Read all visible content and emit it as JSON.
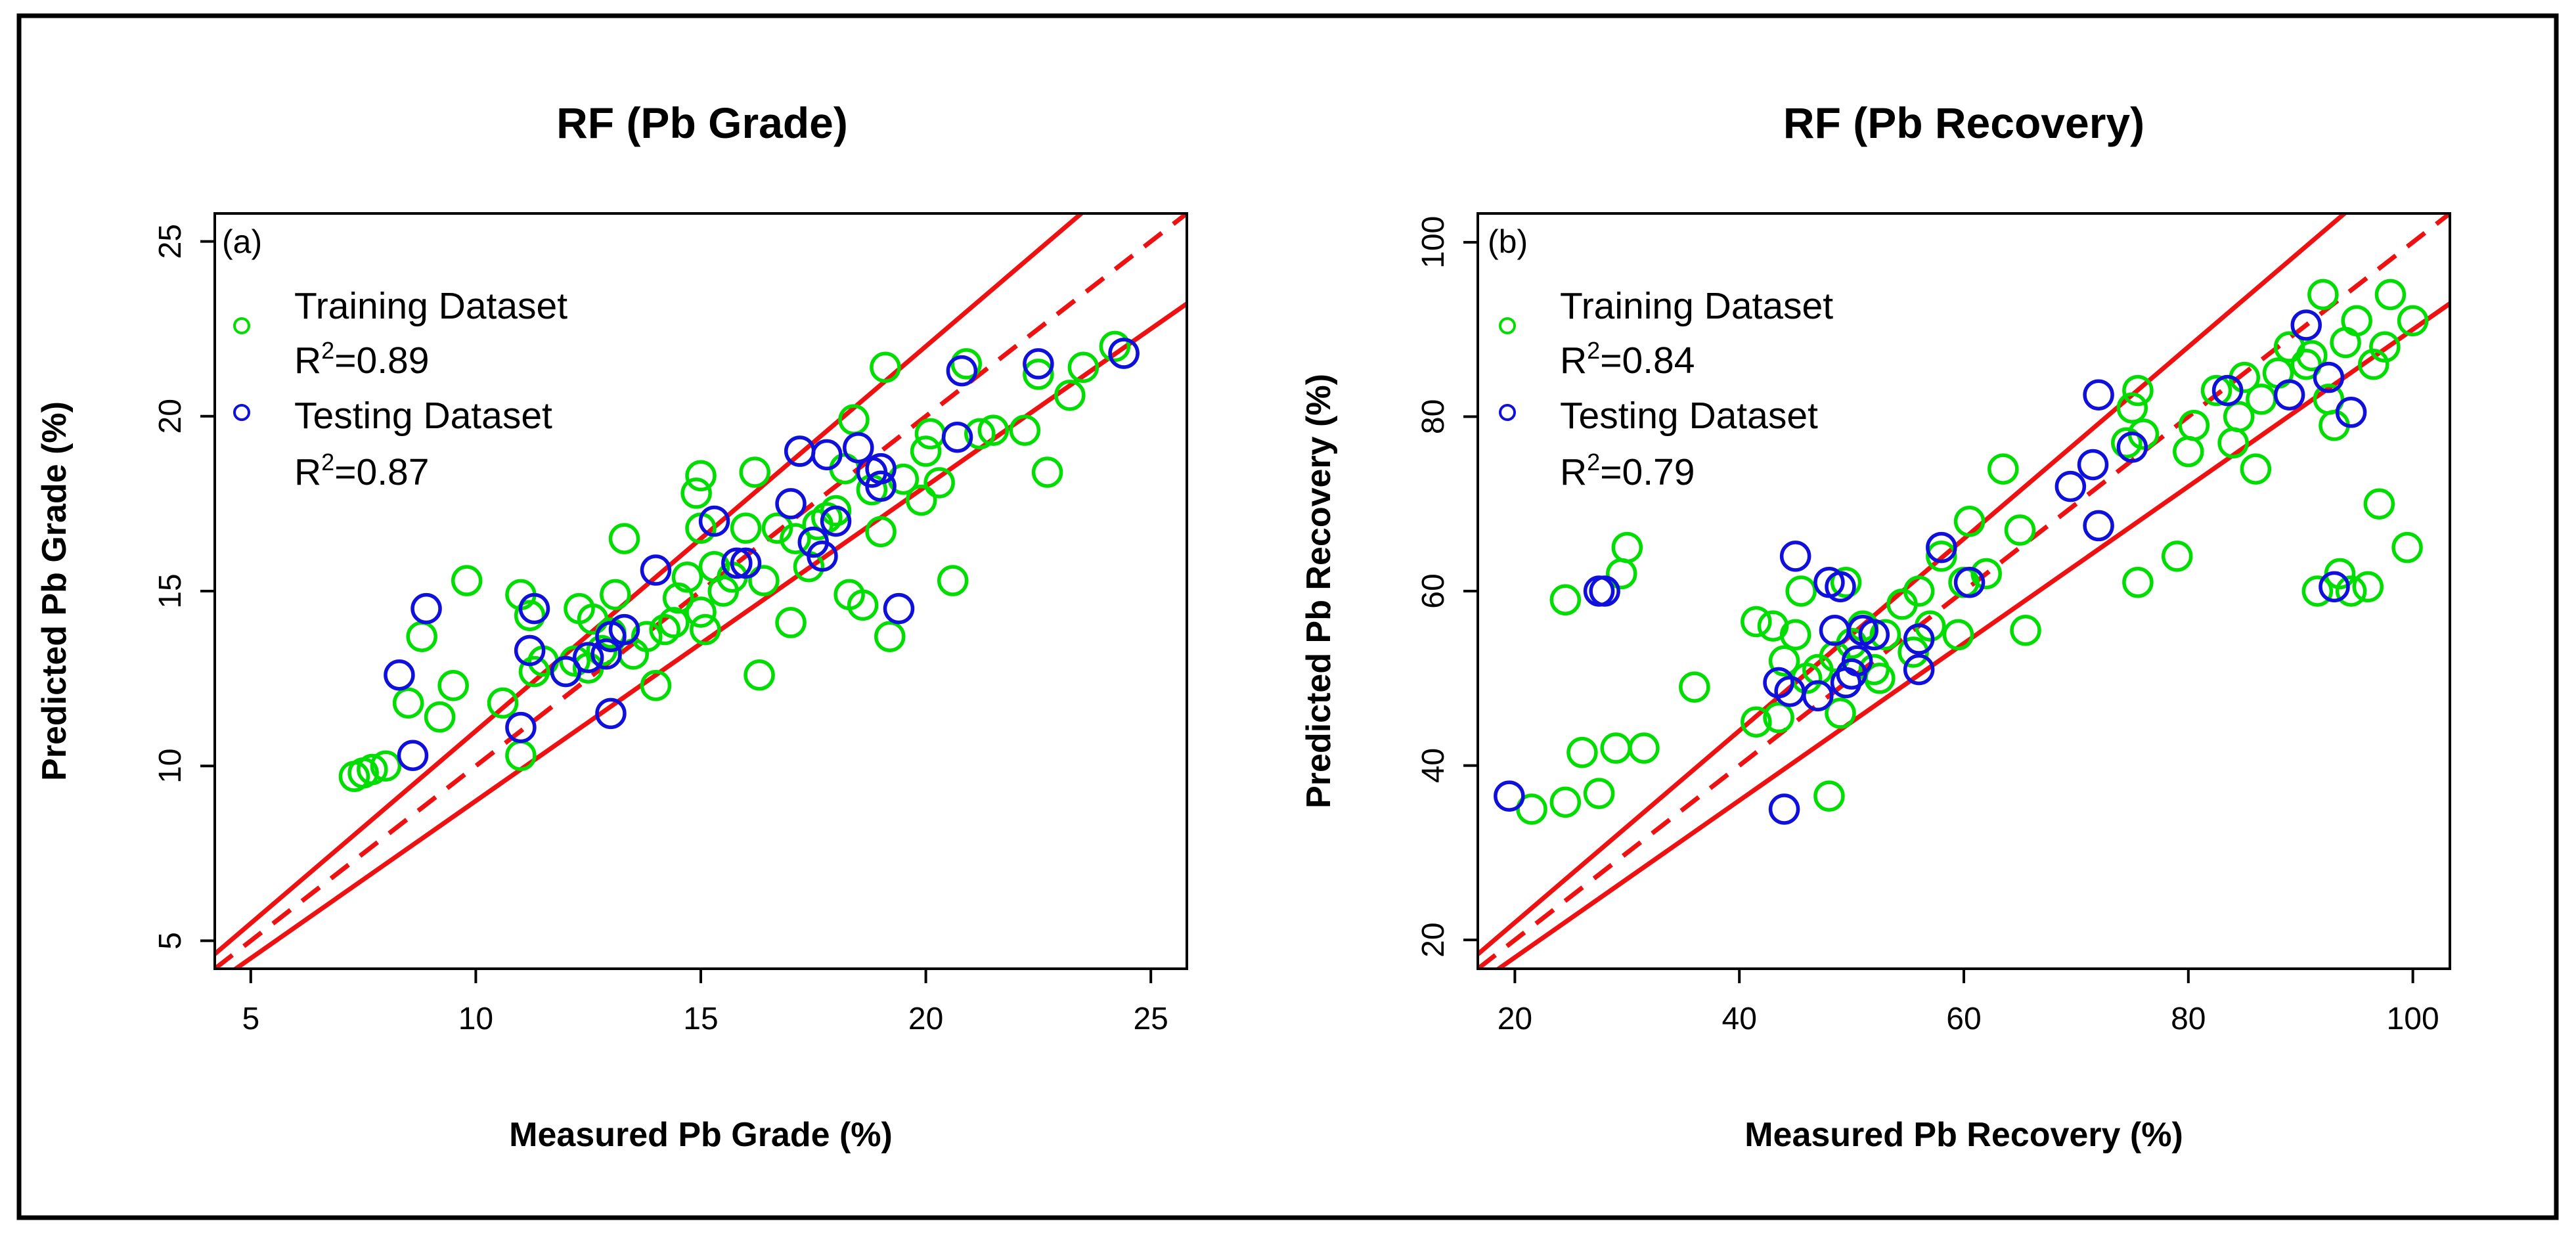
{
  "chart_data": [
    {
      "type": "scatter",
      "panel_label": "(a)",
      "title": "RF (Pb Grade)",
      "xlabel": "Measured Pb Grade (%)",
      "ylabel": "Predicted Pb Grade (%)",
      "xlim": [
        4.2,
        25.8
      ],
      "ylim": [
        4.2,
        25.8
      ],
      "xticks": [
        5,
        10,
        15,
        20,
        25
      ],
      "yticks": [
        5,
        10,
        15,
        20,
        25
      ],
      "legend": {
        "position": "top-left",
        "entries": [
          {
            "label": "Training Dataset",
            "stat": "R²=0.89",
            "color": "#00dd00"
          },
          {
            "label": "Testing Dataset",
            "stat": "R²=0.87",
            "color": "#1010dd"
          }
        ]
      },
      "reference_lines": [
        {
          "kind": "dashed",
          "slope": 1.0,
          "color": "#ee1111"
        },
        {
          "kind": "solid",
          "slope": 1.1,
          "color": "#ee1111"
        },
        {
          "kind": "solid",
          "slope": 0.9,
          "color": "#ee1111"
        }
      ],
      "series": [
        {
          "name": "Training Dataset",
          "color": "#00dd00",
          "points": [
            [
              7.3,
              9.7
            ],
            [
              7.5,
              9.8
            ],
            [
              7.7,
              9.9
            ],
            [
              8.0,
              10.0
            ],
            [
              8.5,
              11.8
            ],
            [
              8.8,
              13.7
            ],
            [
              9.2,
              11.4
            ],
            [
              9.5,
              12.3
            ],
            [
              9.8,
              15.3
            ],
            [
              10.6,
              11.8
            ],
            [
              11.0,
              10.3
            ],
            [
              11.0,
              14.9
            ],
            [
              11.3,
              12.7
            ],
            [
              11.5,
              13.0
            ],
            [
              11.2,
              14.3
            ],
            [
              12.0,
              12.7
            ],
            [
              12.2,
              13.0
            ],
            [
              12.3,
              14.5
            ],
            [
              12.5,
              12.8
            ],
            [
              12.6,
              14.2
            ],
            [
              12.8,
              13.3
            ],
            [
              13.0,
              13.8
            ],
            [
              13.1,
              14.9
            ],
            [
              13.3,
              16.5
            ],
            [
              13.5,
              13.2
            ],
            [
              13.8,
              13.7
            ],
            [
              14.0,
              12.3
            ],
            [
              14.2,
              13.9
            ],
            [
              14.4,
              14.1
            ],
            [
              14.5,
              14.8
            ],
            [
              14.7,
              15.4
            ],
            [
              14.9,
              17.8
            ],
            [
              15.0,
              18.3
            ],
            [
              15.0,
              16.8
            ],
            [
              15.0,
              14.4
            ],
            [
              15.1,
              13.9
            ],
            [
              15.3,
              15.7
            ],
            [
              15.5,
              15.0
            ],
            [
              15.7,
              15.4
            ],
            [
              16.0,
              16.8
            ],
            [
              16.2,
              18.4
            ],
            [
              16.3,
              12.6
            ],
            [
              16.4,
              15.3
            ],
            [
              16.7,
              16.8
            ],
            [
              17.0,
              14.1
            ],
            [
              17.1,
              16.5
            ],
            [
              17.2,
              19.0
            ],
            [
              17.4,
              15.7
            ],
            [
              17.6,
              16.9
            ],
            [
              17.8,
              17.1
            ],
            [
              18.0,
              17.3
            ],
            [
              18.2,
              18.5
            ],
            [
              18.3,
              14.9
            ],
            [
              18.4,
              19.9
            ],
            [
              18.6,
              14.6
            ],
            [
              18.8,
              17.9
            ],
            [
              19.0,
              16.7
            ],
            [
              19.1,
              21.4
            ],
            [
              19.2,
              13.7
            ],
            [
              19.5,
              18.2
            ],
            [
              19.9,
              17.6
            ],
            [
              20.0,
              19.0
            ],
            [
              20.1,
              19.5
            ],
            [
              20.3,
              18.1
            ],
            [
              20.6,
              15.3
            ],
            [
              20.9,
              21.5
            ],
            [
              21.2,
              19.5
            ],
            [
              21.5,
              19.6
            ],
            [
              22.2,
              19.6
            ],
            [
              22.5,
              21.2
            ],
            [
              22.7,
              18.4
            ],
            [
              23.2,
              20.6
            ],
            [
              23.5,
              21.4
            ],
            [
              24.2,
              22.0
            ],
            [
              24.4,
              21.8
            ]
          ]
        },
        {
          "name": "Testing Dataset",
          "color": "#1010dd",
          "points": [
            [
              8.3,
              12.6
            ],
            [
              8.6,
              10.3
            ],
            [
              8.9,
              14.5
            ],
            [
              11.0,
              11.1
            ],
            [
              11.2,
              13.3
            ],
            [
              11.3,
              14.5
            ],
            [
              12.0,
              12.7
            ],
            [
              12.5,
              13.1
            ],
            [
              12.9,
              13.2
            ],
            [
              13.0,
              11.5
            ],
            [
              13.0,
              13.7
            ],
            [
              13.3,
              13.9
            ],
            [
              14.0,
              15.6
            ],
            [
              15.3,
              17.0
            ],
            [
              15.8,
              15.8
            ],
            [
              16.0,
              15.8
            ],
            [
              17.0,
              17.5
            ],
            [
              17.2,
              19.0
            ],
            [
              17.5,
              16.4
            ],
            [
              17.7,
              16.0
            ],
            [
              17.8,
              18.9
            ],
            [
              18.0,
              17.0
            ],
            [
              18.5,
              19.1
            ],
            [
              18.8,
              18.4
            ],
            [
              19.0,
              18.5
            ],
            [
              19.0,
              18.0
            ],
            [
              19.4,
              14.5
            ],
            [
              20.7,
              19.4
            ],
            [
              20.8,
              21.3
            ],
            [
              22.5,
              21.5
            ],
            [
              24.4,
              21.8
            ]
          ]
        }
      ]
    },
    {
      "type": "scatter",
      "panel_label": "(b)",
      "title": "RF (Pb Recovery)",
      "xlabel": "Measured Pb Recovery (%)",
      "ylabel": "Predicted Pb Recovery (%)",
      "xlim": [
        16.7,
        103.3
      ],
      "ylim": [
        16.7,
        103.3
      ],
      "xticks": [
        20,
        40,
        60,
        80,
        100
      ],
      "yticks": [
        20,
        40,
        60,
        80,
        100
      ],
      "legend": {
        "position": "top-left",
        "entries": [
          {
            "label": "Training Dataset",
            "stat": "R²=0.84",
            "color": "#00dd00"
          },
          {
            "label": "Testing Dataset",
            "stat": "R²=0.79",
            "color": "#1010dd"
          }
        ]
      },
      "reference_lines": [
        {
          "kind": "dashed",
          "slope": 1.0,
          "color": "#ee1111"
        },
        {
          "kind": "solid",
          "slope": 1.1,
          "color": "#ee1111"
        },
        {
          "kind": "solid",
          "slope": 0.9,
          "color": "#ee1111"
        }
      ],
      "series": [
        {
          "name": "Training Dataset",
          "color": "#00dd00",
          "points": [
            [
              21.5,
              35.0
            ],
            [
              24.5,
              35.8
            ],
            [
              24.5,
              59.0
            ],
            [
              26.0,
              41.5
            ],
            [
              27.5,
              36.8
            ],
            [
              29.0,
              42.0
            ],
            [
              29.5,
              62.0
            ],
            [
              30.0,
              65.0
            ],
            [
              31.5,
              42.0
            ],
            [
              36.0,
              49.0
            ],
            [
              41.5,
              45.0
            ],
            [
              41.5,
              56.5
            ],
            [
              43.0,
              56.0
            ],
            [
              43.5,
              45.5
            ],
            [
              44.0,
              52.0
            ],
            [
              45.0,
              55.0
            ],
            [
              45.5,
              60.0
            ],
            [
              46.0,
              50.0
            ],
            [
              47.0,
              51.0
            ],
            [
              48.0,
              36.5
            ],
            [
              48.5,
              52.5
            ],
            [
              49.0,
              46.0
            ],
            [
              49.5,
              61.0
            ],
            [
              50.0,
              54.0
            ],
            [
              51.0,
              56.0
            ],
            [
              52.0,
              51.0
            ],
            [
              52.5,
              50.0
            ],
            [
              53.0,
              55.0
            ],
            [
              54.5,
              58.5
            ],
            [
              55.5,
              53.0
            ],
            [
              56.0,
              60.0
            ],
            [
              57.0,
              56.0
            ],
            [
              58.0,
              64.0
            ],
            [
              59.5,
              55.0
            ],
            [
              60.0,
              61.0
            ],
            [
              60.5,
              68.0
            ],
            [
              62.0,
              62.0
            ],
            [
              63.5,
              74.0
            ],
            [
              65.0,
              67.0
            ],
            [
              65.5,
              55.5
            ],
            [
              74.5,
              77.0
            ],
            [
              75.0,
              81.0
            ],
            [
              75.5,
              83.0
            ],
            [
              75.5,
              61.0
            ],
            [
              76.0,
              78.0
            ],
            [
              79.0,
              64.0
            ],
            [
              80.0,
              76.0
            ],
            [
              80.5,
              79.0
            ],
            [
              82.5,
              83.0
            ],
            [
              83.5,
              83.0
            ],
            [
              84.0,
              77.0
            ],
            [
              84.5,
              80.0
            ],
            [
              85.0,
              84.5
            ],
            [
              86.0,
              74.0
            ],
            [
              86.5,
              82.0
            ],
            [
              88.0,
              85.0
            ],
            [
              89.0,
              88.0
            ],
            [
              90.5,
              86.0
            ],
            [
              91.0,
              87.0
            ],
            [
              91.5,
              60.0
            ],
            [
              92.0,
              94.0
            ],
            [
              92.5,
              82.0
            ],
            [
              93.0,
              79.0
            ],
            [
              93.5,
              62.0
            ],
            [
              94.0,
              88.5
            ],
            [
              94.5,
              60.0
            ],
            [
              95.0,
              91.0
            ],
            [
              96.0,
              60.5
            ],
            [
              96.5,
              86.0
            ],
            [
              97.0,
              70.0
            ],
            [
              97.5,
              88.0
            ],
            [
              98.0,
              94.0
            ],
            [
              99.5,
              65.0
            ],
            [
              100.0,
              91.0
            ]
          ]
        },
        {
          "name": "Testing Dataset",
          "color": "#1010dd",
          "points": [
            [
              19.5,
              36.5
            ],
            [
              27.5,
              60.0
            ],
            [
              28.0,
              60.0
            ],
            [
              43.5,
              49.5
            ],
            [
              44.0,
              35.0
            ],
            [
              44.5,
              48.5
            ],
            [
              45.0,
              64.0
            ],
            [
              47.0,
              48.0
            ],
            [
              48.0,
              61.0
            ],
            [
              48.5,
              55.5
            ],
            [
              49.0,
              60.5
            ],
            [
              49.5,
              49.5
            ],
            [
              50.0,
              50.5
            ],
            [
              50.5,
              52.0
            ],
            [
              51.0,
              55.5
            ],
            [
              52.0,
              55.0
            ],
            [
              56.0,
              51.0
            ],
            [
              56.0,
              54.5
            ],
            [
              58.0,
              65.0
            ],
            [
              60.5,
              61.0
            ],
            [
              69.5,
              72.0
            ],
            [
              71.5,
              74.5
            ],
            [
              72.0,
              67.5
            ],
            [
              72.0,
              82.5
            ],
            [
              75.0,
              76.5
            ],
            [
              83.5,
              83.0
            ],
            [
              89.0,
              82.5
            ],
            [
              90.5,
              90.5
            ],
            [
              92.5,
              84.5
            ],
            [
              93.0,
              60.5
            ],
            [
              94.5,
              80.5
            ]
          ]
        }
      ]
    }
  ]
}
